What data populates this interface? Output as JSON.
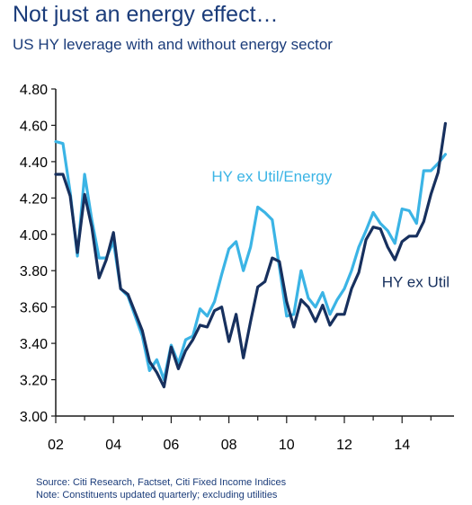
{
  "title": "Not just an energy effect…",
  "subtitle": "US HY leverage with and without energy sector",
  "source": "Source: Citi Research, Factset, Citi Fixed Income Indices",
  "note": "Note: Constituents updated quarterly; excluding utilities",
  "chart_data": {
    "type": "line",
    "grid": false,
    "x_unit": "year",
    "xlim": [
      2002,
      2015.8
    ],
    "ylim": [
      3.0,
      4.8
    ],
    "x_ticks": [
      2002,
      2004,
      2006,
      2008,
      2010,
      2012,
      2014
    ],
    "x_tick_labels": [
      "02",
      "04",
      "06",
      "08",
      "10",
      "12",
      "14"
    ],
    "y_ticks": [
      3.0,
      3.2,
      3.4,
      3.6,
      3.8,
      4.0,
      4.2,
      4.4,
      4.6,
      4.8
    ],
    "y_tick_labels": [
      "3.00",
      "3.20",
      "3.40",
      "3.60",
      "3.80",
      "4.00",
      "4.20",
      "4.40",
      "4.60",
      "4.80"
    ],
    "series": [
      {
        "name": "HY ex Util",
        "color": "#17305e",
        "label_position": "right of line near 2013.2",
        "x": [
          2002.0,
          2002.25,
          2002.5,
          2002.75,
          2003.0,
          2003.25,
          2003.5,
          2003.75,
          2004.0,
          2004.25,
          2004.5,
          2004.75,
          2005.0,
          2005.25,
          2005.5,
          2005.75,
          2006.0,
          2006.25,
          2006.5,
          2006.75,
          2007.0,
          2007.25,
          2007.5,
          2007.75,
          2008.0,
          2008.25,
          2008.5,
          2008.75,
          2009.0,
          2009.25,
          2009.5,
          2009.75,
          2010.0,
          2010.25,
          2010.5,
          2010.75,
          2011.0,
          2011.25,
          2011.5,
          2011.75,
          2012.0,
          2012.25,
          2012.5,
          2012.75,
          2013.0,
          2013.25,
          2013.5,
          2013.75,
          2014.0,
          2014.25,
          2014.5,
          2014.75,
          2015.0,
          2015.25,
          2015.5
        ],
        "values": [
          4.33,
          4.33,
          4.21,
          3.9,
          4.22,
          4.04,
          3.76,
          3.86,
          4.01,
          3.7,
          3.67,
          3.57,
          3.47,
          3.3,
          3.24,
          3.16,
          3.38,
          3.26,
          3.36,
          3.42,
          3.5,
          3.49,
          3.58,
          3.6,
          3.41,
          3.56,
          3.32,
          3.52,
          3.71,
          3.74,
          3.87,
          3.85,
          3.63,
          3.49,
          3.64,
          3.6,
          3.52,
          3.61,
          3.5,
          3.56,
          3.56,
          3.7,
          3.79,
          3.97,
          4.04,
          4.03,
          3.93,
          3.86,
          3.96,
          3.99,
          3.99,
          4.07,
          4.22,
          4.34,
          4.61
        ]
      },
      {
        "name": "HY ex Util/Energy",
        "color": "#3bb4e5",
        "label_position": "above line near 2008.5",
        "x": [
          2002.0,
          2002.25,
          2002.5,
          2002.75,
          2003.0,
          2003.25,
          2003.5,
          2003.75,
          2004.0,
          2004.25,
          2004.5,
          2004.75,
          2005.0,
          2005.25,
          2005.5,
          2005.75,
          2006.0,
          2006.25,
          2006.5,
          2006.75,
          2007.0,
          2007.25,
          2007.5,
          2007.75,
          2008.0,
          2008.25,
          2008.5,
          2008.75,
          2009.0,
          2009.25,
          2009.5,
          2009.75,
          2010.0,
          2010.25,
          2010.5,
          2010.75,
          2011.0,
          2011.25,
          2011.5,
          2011.75,
          2012.0,
          2012.25,
          2012.5,
          2012.75,
          2013.0,
          2013.25,
          2013.5,
          2013.75,
          2014.0,
          2014.25,
          2014.5,
          2014.75,
          2015.0,
          2015.25,
          2015.5
        ],
        "values": [
          4.51,
          4.5,
          4.23,
          3.88,
          4.33,
          4.08,
          3.87,
          3.87,
          3.96,
          3.7,
          3.66,
          3.55,
          3.44,
          3.25,
          3.31,
          3.2,
          3.39,
          3.29,
          3.42,
          3.44,
          3.59,
          3.55,
          3.63,
          3.78,
          3.92,
          3.96,
          3.8,
          3.93,
          4.15,
          4.12,
          4.08,
          3.82,
          3.55,
          3.56,
          3.8,
          3.65,
          3.6,
          3.68,
          3.56,
          3.64,
          3.7,
          3.8,
          3.93,
          4.02,
          4.12,
          4.06,
          4.02,
          3.95,
          4.14,
          4.13,
          4.06,
          4.35,
          4.35,
          4.39,
          4.44
        ]
      }
    ]
  }
}
